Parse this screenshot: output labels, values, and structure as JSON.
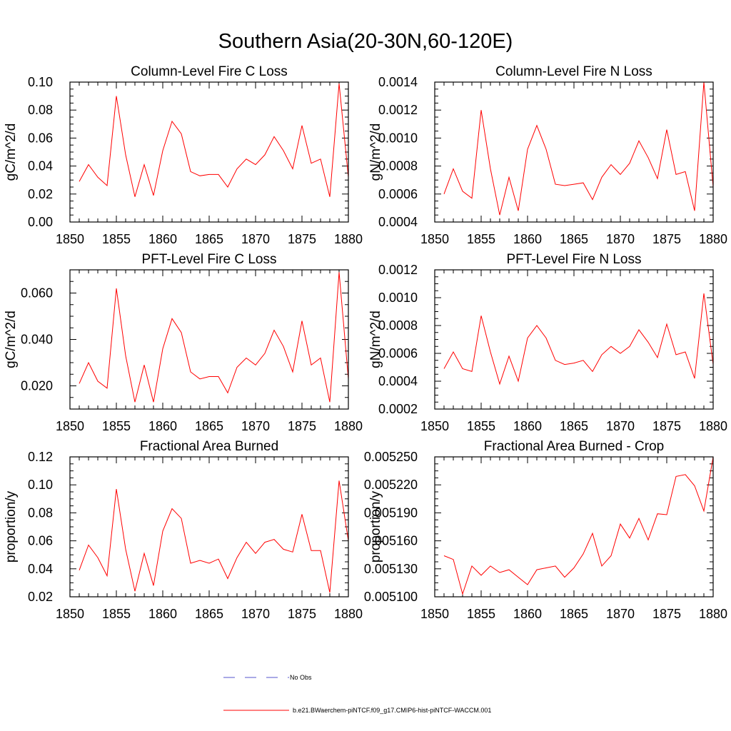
{
  "title": "Southern Asia(20-30N,60-120E)",
  "legend": [
    {
      "label": "No Obs",
      "color": "#5555cc",
      "dash": true
    },
    {
      "label": "b.e21.BWaerchem-piNTCF.f09_g17.CMIP6-hist-piNTCF-WACCM.001",
      "color": "#ff0000",
      "dash": false
    }
  ],
  "chart_data": [
    {
      "type": "line",
      "title": "Column-Level Fire C Loss",
      "ylabel": "gC/m^2/d",
      "xlim": [
        1850,
        1880
      ],
      "ylim": [
        0.0,
        0.1
      ],
      "xticks": [
        1850,
        1855,
        1860,
        1865,
        1870,
        1875,
        1880
      ],
      "xtick_labels": [
        "1850",
        "1855",
        "1860",
        "1865",
        "1870",
        "1875",
        "1880"
      ],
      "yticks": [
        0.0,
        0.02,
        0.04,
        0.06,
        0.08,
        0.1
      ],
      "ytick_labels": [
        "0.00",
        "0.02",
        "0.04",
        "0.06",
        "0.08",
        "0.10"
      ],
      "x": [
        1851,
        1852,
        1853,
        1854,
        1855,
        1856,
        1857,
        1858,
        1859,
        1860,
        1861,
        1862,
        1863,
        1864,
        1865,
        1866,
        1867,
        1868,
        1869,
        1870,
        1871,
        1872,
        1873,
        1874,
        1875,
        1876,
        1877,
        1878,
        1879,
        1880
      ],
      "series": [
        {
          "color": "#ff0000",
          "values": [
            0.029,
            0.041,
            0.032,
            0.026,
            0.09,
            0.048,
            0.018,
            0.041,
            0.019,
            0.051,
            0.072,
            0.063,
            0.036,
            0.033,
            0.034,
            0.034,
            0.025,
            0.038,
            0.045,
            0.041,
            0.048,
            0.061,
            0.051,
            0.038,
            0.069,
            0.042,
            0.045,
            0.018,
            0.099,
            0.032
          ]
        }
      ]
    },
    {
      "type": "line",
      "title": "Column-Level Fire N Loss",
      "ylabel": "gN/m^2/d",
      "xlim": [
        1850,
        1880
      ],
      "ylim": [
        0.0004,
        0.0014
      ],
      "xticks": [
        1850,
        1855,
        1860,
        1865,
        1870,
        1875,
        1880
      ],
      "xtick_labels": [
        "1850",
        "1855",
        "1860",
        "1865",
        "1870",
        "1875",
        "1880"
      ],
      "yticks": [
        0.0004,
        0.0006,
        0.0008,
        0.001,
        0.0012,
        0.0014
      ],
      "ytick_labels": [
        "0.0004",
        "0.0006",
        "0.0008",
        "0.0010",
        "0.0012",
        "0.0014"
      ],
      "x": [
        1851,
        1852,
        1853,
        1854,
        1855,
        1856,
        1857,
        1858,
        1859,
        1860,
        1861,
        1862,
        1863,
        1864,
        1865,
        1866,
        1867,
        1868,
        1869,
        1870,
        1871,
        1872,
        1873,
        1874,
        1875,
        1876,
        1877,
        1878,
        1879,
        1880
      ],
      "series": [
        {
          "color": "#ff0000",
          "values": [
            0.0006,
            0.00078,
            0.00062,
            0.00057,
            0.0012,
            0.00078,
            0.00045,
            0.00072,
            0.00048,
            0.00092,
            0.00109,
            0.00092,
            0.00067,
            0.00066,
            0.00067,
            0.00068,
            0.00056,
            0.00072,
            0.00081,
            0.00074,
            0.00082,
            0.00098,
            0.00086,
            0.00071,
            0.00106,
            0.00074,
            0.00076,
            0.00048,
            0.0014,
            0.00065
          ]
        }
      ]
    },
    {
      "type": "line",
      "title": "PFT-Level Fire C Loss",
      "ylabel": "gC/m^2/d",
      "xlim": [
        1850,
        1880
      ],
      "ylim": [
        0.01,
        0.07
      ],
      "xticks": [
        1850,
        1855,
        1860,
        1865,
        1870,
        1875,
        1880
      ],
      "xtick_labels": [
        "1850",
        "1855",
        "1860",
        "1865",
        "1870",
        "1875",
        "1880"
      ],
      "yticks": [
        0.02,
        0.04,
        0.06
      ],
      "ytick_labels": [
        "0.020",
        "0.040",
        "0.060"
      ],
      "x": [
        1851,
        1852,
        1853,
        1854,
        1855,
        1856,
        1857,
        1858,
        1859,
        1860,
        1861,
        1862,
        1863,
        1864,
        1865,
        1866,
        1867,
        1868,
        1869,
        1870,
        1871,
        1872,
        1873,
        1874,
        1875,
        1876,
        1877,
        1878,
        1879,
        1880
      ],
      "series": [
        {
          "color": "#ff0000",
          "values": [
            0.021,
            0.03,
            0.022,
            0.019,
            0.062,
            0.033,
            0.013,
            0.029,
            0.013,
            0.036,
            0.049,
            0.043,
            0.026,
            0.023,
            0.024,
            0.024,
            0.017,
            0.028,
            0.032,
            0.029,
            0.034,
            0.044,
            0.037,
            0.026,
            0.048,
            0.029,
            0.032,
            0.013,
            0.069,
            0.023
          ]
        }
      ]
    },
    {
      "type": "line",
      "title": "PFT-Level Fire N Loss",
      "ylabel": "gN/m^2/d",
      "xlim": [
        1850,
        1880
      ],
      "ylim": [
        0.0002,
        0.0012
      ],
      "xticks": [
        1850,
        1855,
        1860,
        1865,
        1870,
        1875,
        1880
      ],
      "xtick_labels": [
        "1850",
        "1855",
        "1860",
        "1865",
        "1870",
        "1875",
        "1880"
      ],
      "yticks": [
        0.0002,
        0.0004,
        0.0006,
        0.0008,
        0.001,
        0.0012
      ],
      "ytick_labels": [
        "0.0002",
        "0.0004",
        "0.0006",
        "0.0008",
        "0.0010",
        "0.0012"
      ],
      "x": [
        1851,
        1852,
        1853,
        1854,
        1855,
        1856,
        1857,
        1858,
        1859,
        1860,
        1861,
        1862,
        1863,
        1864,
        1865,
        1866,
        1867,
        1868,
        1869,
        1870,
        1871,
        1872,
        1873,
        1874,
        1875,
        1876,
        1877,
        1878,
        1879,
        1880
      ],
      "series": [
        {
          "color": "#ff0000",
          "values": [
            0.00049,
            0.00061,
            0.00049,
            0.00047,
            0.00087,
            0.00061,
            0.00038,
            0.00058,
            0.0004,
            0.00071,
            0.0008,
            0.00071,
            0.00055,
            0.00052,
            0.00053,
            0.00055,
            0.00047,
            0.00059,
            0.00065,
            0.0006,
            0.00065,
            0.00077,
            0.00068,
            0.00057,
            0.00081,
            0.00059,
            0.00061,
            0.00042,
            0.00103,
            0.00052
          ]
        }
      ]
    },
    {
      "type": "line",
      "title": "Fractional Area Burned",
      "ylabel": "proportion/y",
      "xlim": [
        1850,
        1880
      ],
      "ylim": [
        0.02,
        0.12
      ],
      "xticks": [
        1850,
        1855,
        1860,
        1865,
        1870,
        1875,
        1880
      ],
      "xtick_labels": [
        "1850",
        "1855",
        "1860",
        "1865",
        "1870",
        "1875",
        "1880"
      ],
      "yticks": [
        0.02,
        0.04,
        0.06,
        0.08,
        0.1,
        0.12
      ],
      "ytick_labels": [
        "0.02",
        "0.04",
        "0.06",
        "0.08",
        "0.10",
        "0.12"
      ],
      "x": [
        1851,
        1852,
        1853,
        1854,
        1855,
        1856,
        1857,
        1858,
        1859,
        1860,
        1861,
        1862,
        1863,
        1864,
        1865,
        1866,
        1867,
        1868,
        1869,
        1870,
        1871,
        1872,
        1873,
        1874,
        1875,
        1876,
        1877,
        1878,
        1879,
        1880
      ],
      "series": [
        {
          "color": "#ff0000",
          "values": [
            0.039,
            0.057,
            0.048,
            0.035,
            0.097,
            0.054,
            0.024,
            0.051,
            0.028,
            0.067,
            0.083,
            0.076,
            0.044,
            0.046,
            0.044,
            0.047,
            0.033,
            0.048,
            0.059,
            0.051,
            0.059,
            0.061,
            0.054,
            0.052,
            0.079,
            0.053,
            0.053,
            0.023,
            0.103,
            0.06
          ]
        }
      ]
    },
    {
      "type": "line",
      "title": "Fractional Area Burned - Crop",
      "ylabel": "proportion/y",
      "xlim": [
        1850,
        1880
      ],
      "ylim": [
        0.0051,
        0.00525
      ],
      "xticks": [
        1850,
        1855,
        1860,
        1865,
        1870,
        1875,
        1880
      ],
      "xtick_labels": [
        "1850",
        "1855",
        "1860",
        "1865",
        "1870",
        "1875",
        "1880"
      ],
      "yticks": [
        0.0051,
        0.00513,
        0.00516,
        0.00519,
        0.00522,
        0.00525
      ],
      "ytick_labels": [
        "0.005100",
        "0.005130",
        "0.005160",
        "0.005190",
        "0.005220",
        "0.005250"
      ],
      "x": [
        1851,
        1852,
        1853,
        1854,
        1855,
        1856,
        1857,
        1858,
        1859,
        1860,
        1861,
        1862,
        1863,
        1864,
        1865,
        1866,
        1867,
        1868,
        1869,
        1870,
        1871,
        1872,
        1873,
        1874,
        1875,
        1876,
        1877,
        1878,
        1879,
        1880
      ],
      "series": [
        {
          "color": "#ff0000",
          "values": [
            0.005144,
            0.00514,
            0.005103,
            0.005133,
            0.005123,
            0.005133,
            0.005126,
            0.005129,
            0.005121,
            0.005113,
            0.005129,
            0.005131,
            0.005133,
            0.005121,
            0.005131,
            0.005146,
            0.005168,
            0.005133,
            0.005144,
            0.005178,
            0.005163,
            0.005184,
            0.005161,
            0.005189,
            0.005188,
            0.005229,
            0.005231,
            0.005219,
            0.005192,
            0.00525
          ]
        }
      ]
    }
  ]
}
